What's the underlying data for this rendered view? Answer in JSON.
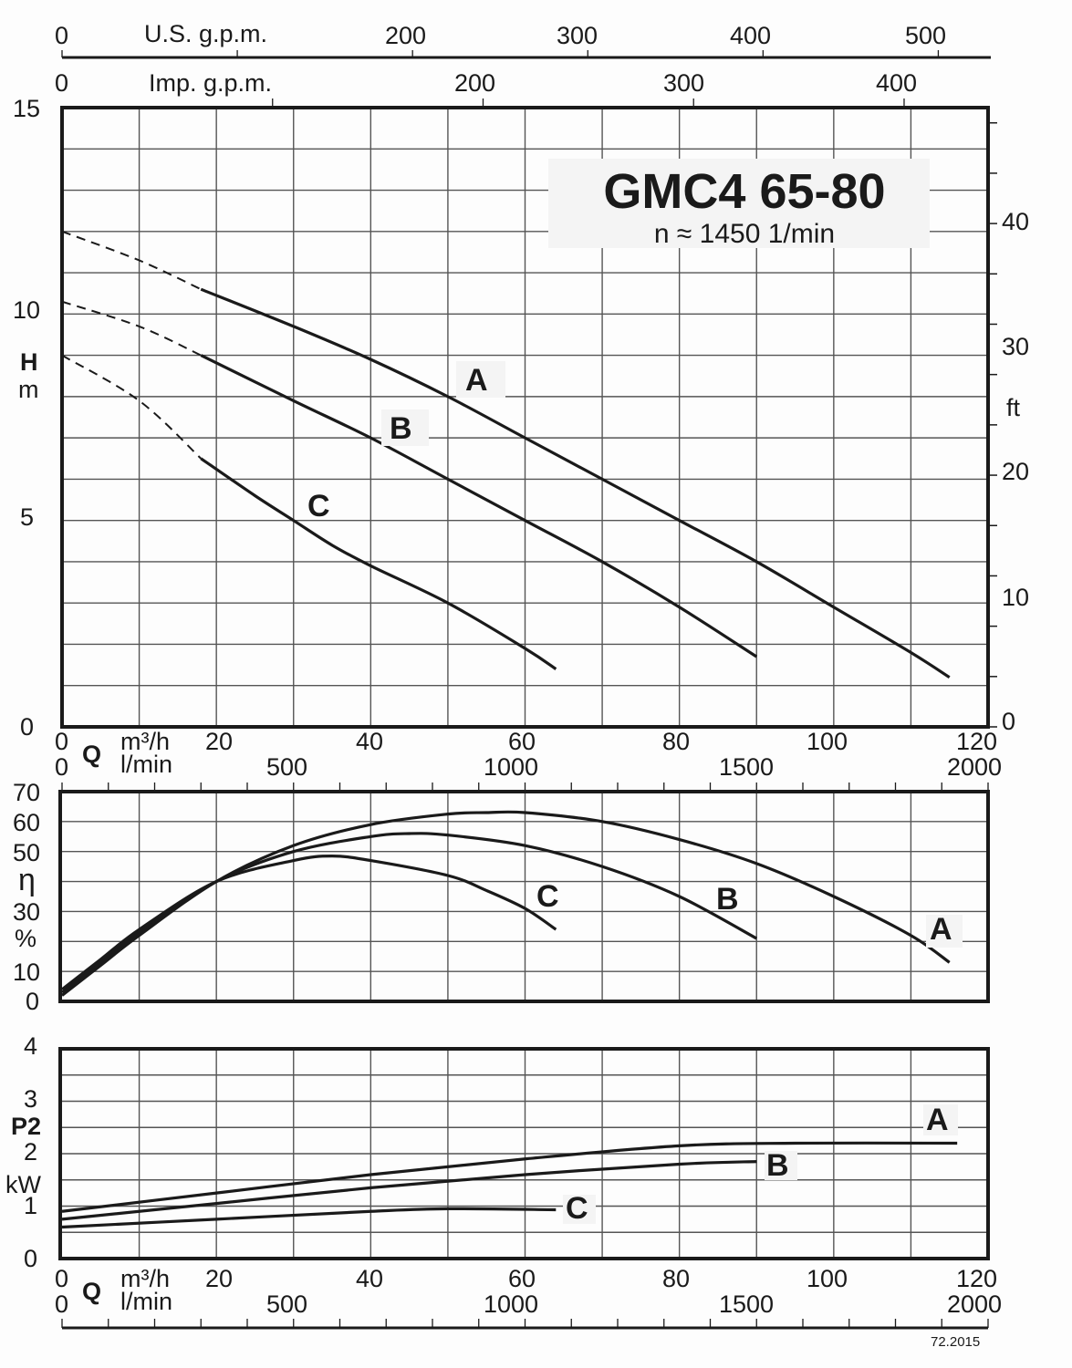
{
  "title": {
    "model": "GMC4 65-80",
    "speed": "n ≈ 1450 1/min"
  },
  "top_axes": {
    "us_gpm": {
      "label": "U.S. g.p.m.",
      "ticks": [
        "0",
        "200",
        "300",
        "400",
        "500"
      ]
    },
    "imp_gpm": {
      "label": "Imp. g.p.m.",
      "ticks": [
        "0",
        "200",
        "300",
        "400"
      ]
    }
  },
  "q_axis": {
    "symbol": "Q",
    "unit_m3h": "m³/h",
    "unit_lmin": "l/min",
    "ticks_m3h": [
      "0",
      "20",
      "40",
      "60",
      "80",
      "100",
      "120"
    ],
    "ticks_lmin": [
      "0",
      "500",
      "1000",
      "1500",
      "2000"
    ]
  },
  "head_axis": {
    "symbol": "H",
    "unit": "m",
    "ticks": [
      "15",
      "10",
      "5",
      "0"
    ],
    "ft_label": "ft",
    "ft_ticks": [
      "40",
      "30",
      "20",
      "10",
      "0"
    ]
  },
  "eff_axis": {
    "symbol": "η",
    "unit": "%",
    "ticks": [
      "70",
      "60",
      "50",
      "30",
      "10",
      "0"
    ]
  },
  "power_axis": {
    "symbol": "P2",
    "unit": "kW",
    "ticks": [
      "4",
      "3",
      "2",
      "1",
      "0"
    ]
  },
  "curve_labels": {
    "a": "A",
    "b": "B",
    "c": "C"
  },
  "footer": {
    "code": "72.2015"
  },
  "chart_data": [
    {
      "type": "line",
      "title": "GMC4 65-80 — Head vs Flow (n ≈ 1450 1/min)",
      "xlabel": "Q m³/h",
      "ylabel": "H m",
      "xlim": [
        0,
        120
      ],
      "ylim": [
        0,
        15
      ],
      "grid": true,
      "secondary_y": {
        "label": "ft",
        "range": [
          0,
          49.2
        ]
      },
      "secondary_x": [
        {
          "label": "U.S. g.p.m.",
          "range": [
            0,
            528
          ]
        },
        {
          "label": "Imp. g.p.m.",
          "range": [
            0,
            440
          ]
        },
        {
          "label": "l/min",
          "range": [
            0,
            2000
          ]
        }
      ],
      "series": [
        {
          "name": "A",
          "dashed_until": 18,
          "x": [
            0,
            10,
            18,
            30,
            40,
            50,
            60,
            70,
            80,
            90,
            100,
            110,
            115
          ],
          "y": [
            12.0,
            11.3,
            10.6,
            9.7,
            8.9,
            8.0,
            7.0,
            6.0,
            5.0,
            4.0,
            2.9,
            1.8,
            1.2
          ]
        },
        {
          "name": "B",
          "dashed_until": 18,
          "x": [
            0,
            10,
            18,
            30,
            40,
            50,
            60,
            70,
            80,
            90
          ],
          "y": [
            10.3,
            9.7,
            9.0,
            7.9,
            7.0,
            6.0,
            5.0,
            4.0,
            2.9,
            1.7
          ]
        },
        {
          "name": "C",
          "dashed_until": 18,
          "x": [
            0,
            10,
            18,
            25,
            30,
            35,
            40,
            50,
            60,
            64
          ],
          "y": [
            9.0,
            7.9,
            6.5,
            5.6,
            5.0,
            4.4,
            3.9,
            3.0,
            1.9,
            1.4
          ]
        }
      ]
    },
    {
      "type": "line",
      "title": "Efficiency",
      "xlabel": "Q m³/h",
      "ylabel": "η %",
      "xlim": [
        0,
        120
      ],
      "ylim": [
        0,
        70
      ],
      "grid": true,
      "series": [
        {
          "name": "A",
          "x": [
            0,
            5,
            10,
            20,
            30,
            40,
            50,
            55,
            60,
            70,
            80,
            90,
            100,
            110,
            115
          ],
          "y": [
            2,
            12,
            22,
            40,
            52,
            59,
            62.5,
            63,
            63,
            60,
            54,
            46,
            35,
            22,
            13
          ]
        },
        {
          "name": "B",
          "x": [
            0,
            5,
            10,
            20,
            30,
            40,
            45,
            50,
            60,
            70,
            80,
            90
          ],
          "y": [
            3,
            13,
            23,
            40,
            50,
            55,
            56,
            55.5,
            52,
            45,
            35,
            21
          ]
        },
        {
          "name": "C",
          "x": [
            0,
            5,
            10,
            20,
            30,
            35,
            40,
            50,
            55,
            60,
            64
          ],
          "y": [
            4,
            14,
            24,
            40,
            47,
            48.5,
            47,
            42,
            37,
            31,
            24
          ]
        }
      ]
    },
    {
      "type": "line",
      "title": "Shaft power",
      "xlabel": "Q m³/h",
      "ylabel": "P2 kW",
      "xlim": [
        0,
        120
      ],
      "ylim": [
        0,
        4
      ],
      "grid": true,
      "series": [
        {
          "name": "A",
          "x": [
            0,
            20,
            40,
            60,
            80,
            95,
            116
          ],
          "y": [
            0.9,
            1.25,
            1.6,
            1.9,
            2.15,
            2.2,
            2.2
          ]
        },
        {
          "name": "B",
          "x": [
            0,
            20,
            40,
            60,
            80,
            90
          ],
          "y": [
            0.75,
            1.05,
            1.35,
            1.6,
            1.8,
            1.85
          ]
        },
        {
          "name": "C",
          "x": [
            0,
            20,
            40,
            50,
            64
          ],
          "y": [
            0.6,
            0.75,
            0.9,
            0.95,
            0.93
          ]
        }
      ]
    }
  ]
}
